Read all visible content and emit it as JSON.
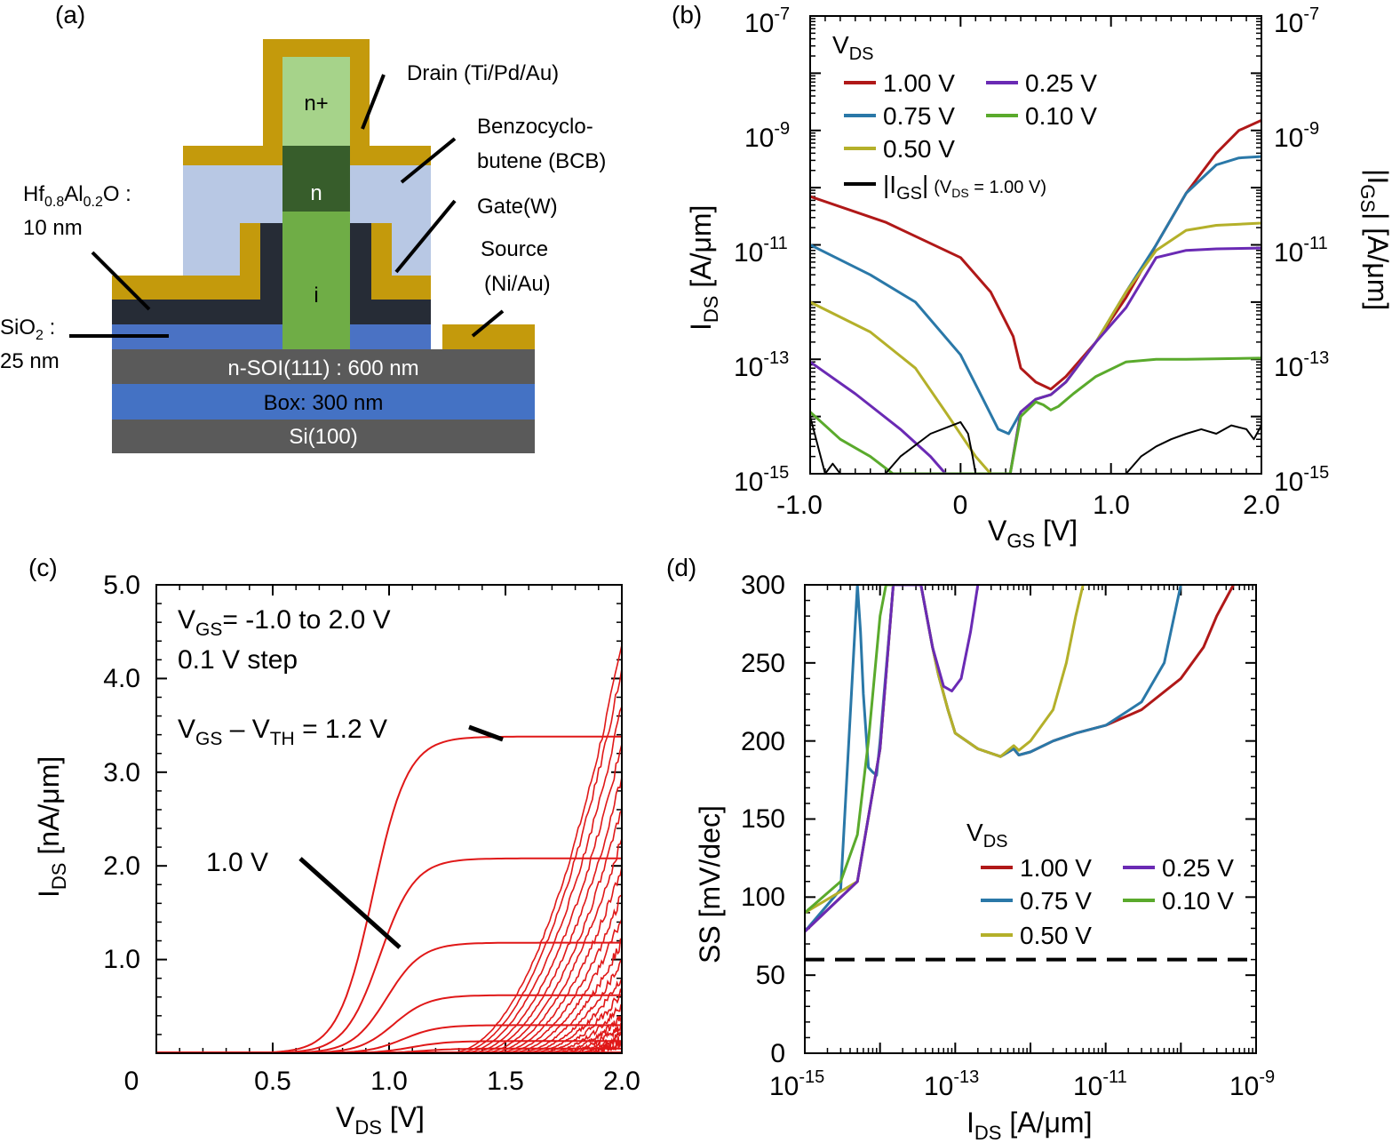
{
  "panels": {
    "a": {
      "label": "(a)",
      "layers": {
        "n_plus": "n+",
        "n": "n",
        "i": "i",
        "soi": "n-SOI(111) : 600 nm",
        "box": "Box: 300 nm",
        "si": "Si(100)"
      },
      "annotations": {
        "drain": "Drain (Ti/Pd/Au)",
        "bcb_1": "Benzocyclo-",
        "bcb_2": "butene (BCB)",
        "gate": "Gate(W)",
        "source_1": "Source",
        "source_2": "(Ni/Au)",
        "hfalo_pre": "Hf",
        "hfalo_sub1": "0.8",
        "hfalo_mid": "Al",
        "hfalo_sub2": "0.2",
        "hfalo_post": "O :",
        "hfalo_thk": "10 nm",
        "sio2_pre": "SiO",
        "sio2_sub": "2",
        "sio2_post": " :",
        "sio2_thk": "25 nm"
      },
      "colors": {
        "metal": "#c49a0c",
        "bcb": "#b8c8e4",
        "n_plus": "#a6d38a",
        "n": "#375d2b",
        "i": "#6fad46",
        "oxide": "#262c36",
        "sio2": "#4a72c4",
        "soi": "#5a5a5a",
        "box": "#4472c4",
        "si": "#5a5a5a"
      }
    },
    "b": {
      "label": "(b)",
      "y_left_label": "I",
      "y_left_sub": "DS",
      "y_left_unit": " [A/μm]",
      "y_right_label": "|I",
      "y_right_sub": "GS",
      "y_right_unit": "| [A/μm]",
      "x_label": "V",
      "x_sub": "GS",
      "x_unit": " [V]",
      "x_ticks": [
        "-1.0",
        "0",
        "1.0",
        "2.0"
      ],
      "y_ticks": [
        "10",
        "10",
        "10",
        "10",
        "10"
      ],
      "y_tick_exp": [
        "-7",
        "-9",
        "-11",
        "-13",
        "-15"
      ],
      "legend_title": "V",
      "legend_title_sub": "DS",
      "legend": [
        "1.00 V",
        "0.75 V",
        "0.50 V",
        "0.25 V",
        "0.10 V"
      ],
      "legend_igs_1": "|I",
      "legend_igs_sub": "GS",
      "legend_igs_2": "|",
      "legend_igs_cond": "(V",
      "legend_igs_cond_sub": "DS",
      "legend_igs_cond_2": " = 1.00 V)"
    },
    "c": {
      "label": "(c)",
      "y_label": "I",
      "y_sub": "DS",
      "y_unit": " [nA/μm]",
      "x_label": "V",
      "x_sub": "DS",
      "x_unit": " [V]",
      "x_ticks": [
        "0",
        "0.5",
        "1.0",
        "1.5",
        "2.0"
      ],
      "y_ticks": [
        "1.0",
        "2.0",
        "3.0",
        "4.0",
        "5.0"
      ],
      "ann1_pre": "V",
      "ann1_sub": "GS",
      "ann1_post": "= -1.0 to 2.0 V",
      "ann2": "0.1 V step",
      "ann3_pre": "V",
      "ann3_sub": "GS",
      "ann3_mid": " – V",
      "ann3_sub2": "TH",
      "ann3_post": " = 1.2 V",
      "ann4": "1.0 V"
    },
    "d": {
      "label": "(d)",
      "y_label": "SS [mV/dec]",
      "x_label": "I",
      "x_sub": "DS",
      "x_unit": " [A/μm]",
      "x_ticks": [
        "10",
        "10",
        "10",
        "10"
      ],
      "x_tick_exp": [
        "-15",
        "-13",
        "-11",
        "-9"
      ],
      "y_ticks": [
        "0",
        "50",
        "100",
        "150",
        "200",
        "250",
        "300"
      ],
      "legend_title": "V",
      "legend_title_sub": "DS",
      "legend": [
        "1.00 V",
        "0.75 V",
        "0.50 V",
        "0.25 V",
        "0.10 V"
      ]
    }
  },
  "colors": {
    "v100": "#b01818",
    "v075": "#2a78a8",
    "v050": "#b4b02a",
    "v025": "#6a2ab4",
    "v010": "#5aaa2c",
    "igs": "#000000",
    "red": "#e01818"
  },
  "chart_data": [
    {
      "panel": "b",
      "type": "line",
      "y_scale": "log",
      "xlim": [
        -1.0,
        2.0
      ],
      "ylim": [
        1e-15,
        1e-07
      ],
      "series": [
        {
          "name": "1.00 V",
          "x": [
            -1.0,
            -0.5,
            0.0,
            0.2,
            0.35,
            0.4,
            0.5,
            0.6,
            0.7,
            0.9,
            1.1,
            1.3,
            1.5,
            1.7,
            1.85,
            2.0
          ],
          "y": [
            7e-11,
            2.5e-11,
            6e-12,
            1.5e-12,
            2.5e-13,
            7e-14,
            4e-14,
            3e-14,
            5e-14,
            2e-13,
            1.2e-12,
            1e-11,
            8e-11,
            4e-10,
            1e-09,
            1.5e-09
          ]
        },
        {
          "name": "0.75 V",
          "x": [
            -1.0,
            -0.6,
            -0.3,
            0.0,
            0.15,
            0.25,
            0.32,
            0.4,
            0.5,
            0.6,
            0.7,
            0.9,
            1.1,
            1.3,
            1.5,
            1.7,
            1.85,
            2.0
          ],
          "y": [
            1e-11,
            3e-12,
            1e-12,
            1.2e-13,
            2e-14,
            6e-15,
            5e-15,
            1.2e-14,
            2e-14,
            2.4e-14,
            4e-14,
            2e-13,
            1.5e-12,
            1e-11,
            8e-11,
            2.5e-10,
            3.3e-10,
            3.5e-10
          ]
        },
        {
          "name": "0.50 V",
          "x": [
            -1.0,
            -0.6,
            -0.3,
            -0.1,
            0.1,
            0.2,
            0.28,
            0.33,
            0.4,
            0.5,
            0.6,
            0.7,
            0.9,
            1.1,
            1.3,
            1.5,
            1.7,
            2.0
          ],
          "y": [
            1e-12,
            3e-13,
            7e-14,
            1.2e-14,
            2e-15,
            1e-15,
            1e-15,
            1e-15,
            1.2e-14,
            2e-14,
            2.4e-14,
            4e-14,
            2e-13,
            1.5e-12,
            8e-12,
            1.8e-11,
            2.2e-11,
            2.4e-11
          ]
        },
        {
          "name": "0.25 V",
          "x": [
            -1.0,
            -0.7,
            -0.4,
            -0.2,
            -0.1,
            0.3,
            0.33,
            0.4,
            0.5,
            0.6,
            0.7,
            0.9,
            1.1,
            1.3,
            1.5,
            1.7,
            2.0
          ],
          "y": [
            9e-14,
            2.5e-14,
            6e-15,
            2e-15,
            1e-15,
            1e-15,
            1e-15,
            1.2e-14,
            2e-14,
            2.4e-14,
            4e-14,
            2e-13,
            8e-13,
            6e-12,
            8e-12,
            8.5e-12,
            8.8e-12
          ]
        },
        {
          "name": "0.10 V",
          "x": [
            -1.0,
            -0.8,
            -0.6,
            -0.45,
            0.3,
            0.33,
            0.4,
            0.5,
            0.55,
            0.6,
            0.65,
            0.75,
            0.9,
            1.1,
            1.3,
            1.5,
            2.0
          ],
          "y": [
            1.2e-14,
            4e-15,
            2e-15,
            1e-15,
            1e-15,
            1e-15,
            1e-14,
            1.8e-14,
            1.6e-14,
            1.3e-14,
            1.5e-14,
            2.5e-14,
            5e-14,
            9e-14,
            1e-13,
            1e-13,
            1.05e-13
          ]
        },
        {
          "name": "|IGS| (VDS = 1.00 V)",
          "x": [
            -1.0,
            -0.9,
            -0.85,
            -0.8,
            -0.7,
            -0.5,
            -0.4,
            -0.2,
            0.0,
            0.05,
            0.08,
            0.1,
            1.1,
            1.2,
            1.3,
            1.4,
            1.5,
            1.6,
            1.7,
            1.8,
            1.9,
            1.95,
            2.0
          ],
          "y": [
            1e-14,
            1e-15,
            1.5e-15,
            1e-15,
            1e-15,
            1e-15,
            2e-15,
            5e-15,
            8e-15,
            5e-15,
            2e-15,
            1e-15,
            1e-15,
            2e-15,
            3e-15,
            4e-15,
            5e-15,
            6e-15,
            5e-15,
            7e-15,
            6e-15,
            4e-15,
            7e-15
          ]
        }
      ]
    },
    {
      "panel": "c",
      "type": "line",
      "xlim": [
        0.0,
        2.0
      ],
      "ylim": [
        0.0,
        5.0
      ],
      "series": [
        {
          "name": "3.38",
          "x": [
            0.0,
            2.0
          ],
          "y": [
            0.0,
            3.38
          ]
        },
        {
          "name": "2.08",
          "x": [
            0.0,
            2.0
          ],
          "y": [
            0.0,
            2.08
          ]
        },
        {
          "name": "1.18",
          "x": [
            0.0,
            2.0
          ],
          "y": [
            0.0,
            1.18
          ]
        },
        {
          "name": "0.62",
          "x": [
            0.0,
            2.0
          ],
          "y": [
            0.0,
            0.62
          ]
        },
        {
          "name": "0.3",
          "x": [
            0.0,
            2.0
          ],
          "y": [
            0.0,
            0.3
          ]
        },
        {
          "name": "0.13",
          "x": [
            0.0,
            2.0
          ],
          "y": [
            0.0,
            0.13
          ]
        },
        {
          "name": "0.05",
          "x": [
            0.0,
            2.0
          ],
          "y": [
            0.0,
            0.05
          ]
        }
      ],
      "rise_endpoints": [
        4.35,
        4.1,
        3.7,
        3.3,
        2.95,
        2.6,
        2.3,
        2.0,
        1.7,
        1.45,
        1.2,
        1.0,
        0.82,
        0.66,
        0.52,
        0.4,
        0.3,
        0.22,
        0.15,
        0.1
      ]
    },
    {
      "panel": "d",
      "type": "line",
      "x_scale": "log",
      "xlim": [
        1e-15,
        1e-09
      ],
      "ylim": [
        0,
        300
      ],
      "reference_line": 60,
      "series": [
        {
          "name": "1.00 V",
          "x": [
            1e-15,
            5e-15,
            1e-14,
            1.5e-14,
            3.5e-14,
            5e-14,
            6e-14,
            8e-14,
            1e-13,
            2e-13,
            4e-13,
            6e-13,
            7e-13,
            1e-12,
            2e-12,
            4e-12,
            1e-11,
            3e-11,
            1e-10,
            2e-10,
            3e-10,
            5e-10
          ],
          "y": [
            78,
            110,
            195,
            300,
            300,
            260,
            242,
            220,
            205,
            195,
            190,
            195,
            191,
            193,
            200,
            205,
            210,
            220,
            240,
            260,
            280,
            300
          ]
        },
        {
          "name": "0.75 V",
          "x": [
            1e-15,
            3e-15,
            5e-15,
            5.5e-15,
            6e-15,
            7e-15,
            8e-15,
            9e-15,
            1e-14,
            1.5e-14,
            3.5e-14,
            5e-14,
            6e-14,
            8e-14,
            1e-13,
            2e-13,
            4e-13,
            6e-13,
            7e-13,
            1e-12,
            2e-12,
            4e-12,
            1e-11,
            3e-11,
            6e-11,
            1e-10
          ],
          "y": [
            78,
            105,
            300,
            270,
            230,
            183,
            180,
            178,
            200,
            300,
            300,
            260,
            242,
            220,
            205,
            195,
            190,
            195,
            191,
            193,
            200,
            205,
            210,
            225,
            250,
            300
          ]
        },
        {
          "name": "0.50 V",
          "x": [
            1e-15,
            5e-15,
            1e-14,
            1.5e-14,
            3.5e-14,
            5e-14,
            6e-14,
            8e-14,
            1e-13,
            2e-13,
            4e-13,
            6e-13,
            7e-13,
            1e-12,
            2e-12,
            3e-12,
            4e-12,
            5e-12
          ],
          "y": [
            90,
            110,
            195,
            300,
            300,
            260,
            242,
            220,
            205,
            195,
            190,
            197,
            194,
            200,
            220,
            250,
            280,
            300
          ]
        },
        {
          "name": "0.25 V",
          "x": [
            1e-15,
            5e-15,
            1e-14,
            1.5e-14,
            3.5e-14,
            5e-14,
            7e-14,
            9e-14,
            1.2e-13,
            1.6e-13,
            2e-13
          ],
          "y": [
            78,
            110,
            195,
            300,
            300,
            260,
            235,
            232,
            240,
            270,
            300
          ]
        },
        {
          "name": "0.10 V",
          "x": [
            1e-15,
            3e-15,
            5e-15,
            7e-15,
            1e-14,
            1.2e-14,
            1.5e-14
          ],
          "y": [
            90,
            110,
            140,
            200,
            280,
            300,
            300
          ]
        }
      ]
    }
  ]
}
